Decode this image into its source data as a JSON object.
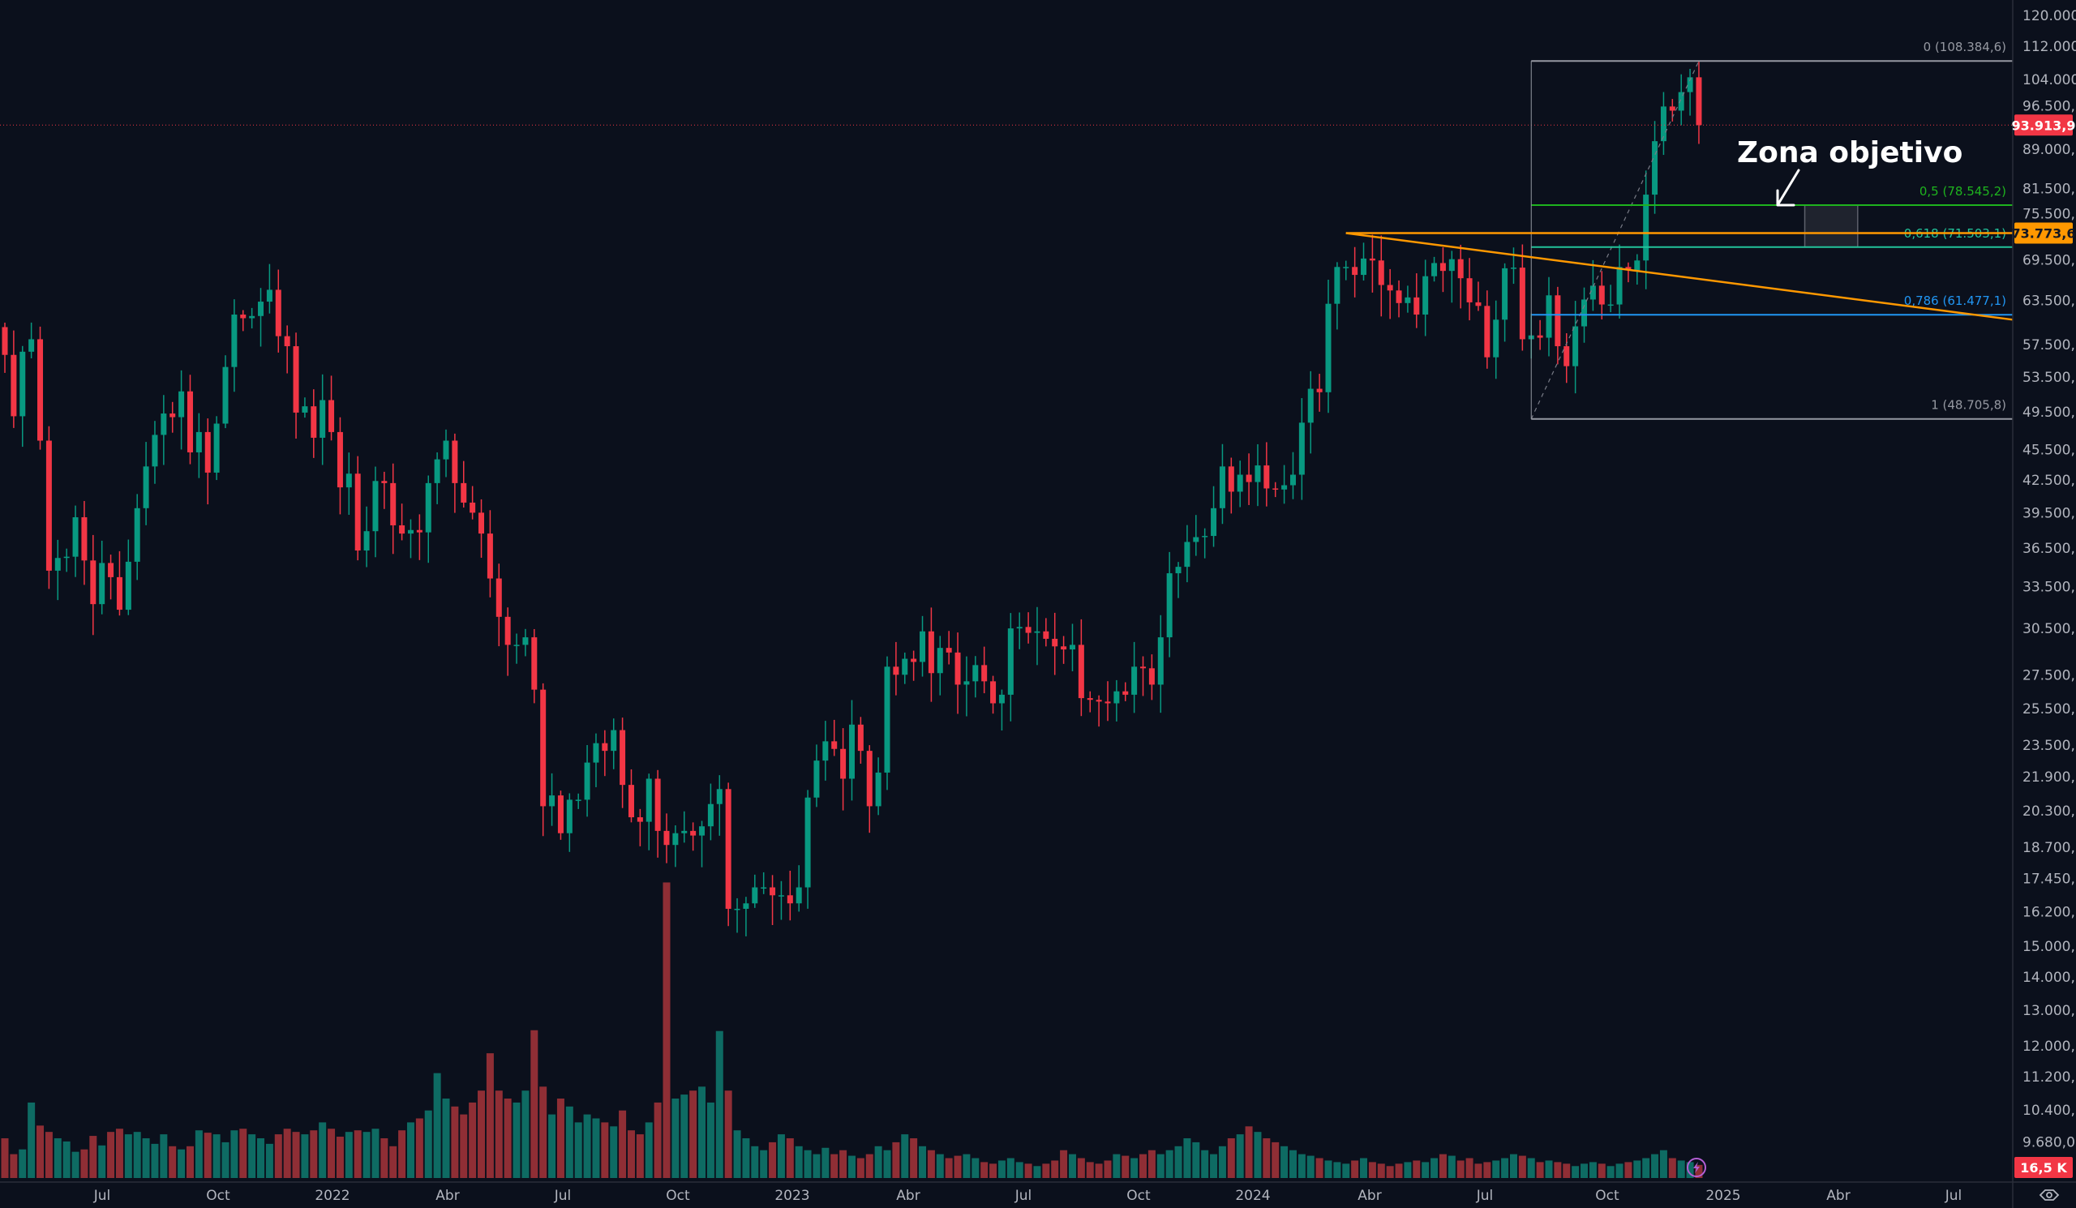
{
  "chart_data": {
    "type": "candlestick",
    "title": "",
    "scale": "log",
    "ylim": [
      9000,
      125000
    ],
    "colors": {
      "up": "#089981",
      "down": "#f23645",
      "vol_up": "#0e6b63",
      "vol_down": "#8f2e35",
      "background": "#0b101c"
    },
    "first_open": 59800,
    "weekly_close": [
      56200,
      49000,
      56600,
      58200,
      46400,
      34700,
      35700,
      35800,
      39100,
      35500,
      32200,
      35300,
      34200,
      31800,
      35400,
      39900,
      43800,
      47000,
      49300,
      48900,
      51800,
      45200,
      47300,
      43200,
      48200,
      54700,
      61500,
      61000,
      61300,
      63300,
      65000,
      58600,
      57300,
      49400,
      50100,
      46700,
      50800,
      47300,
      41800,
      43100,
      36300,
      37900,
      42400,
      42200,
      38400,
      37700,
      38000,
      37800,
      42200,
      44500,
      46400,
      42200,
      40400,
      39500,
      37700,
      34100,
      31300,
      29400,
      29400,
      29900,
      26600,
      20500,
      21000,
      19300,
      20800,
      20800,
      22600,
      23600,
      23200,
      24300,
      21500,
      20000,
      19800,
      21800,
      19400,
      18800,
      19300,
      19400,
      19200,
      19600,
      20600,
      21300,
      16300,
      16300,
      16500,
      17100,
      17100,
      16800,
      16800,
      16500,
      17100,
      20900,
      22700,
      23700,
      23300,
      21800,
      24600,
      23200,
      20500,
      22100,
      28000,
      27500,
      28500,
      28300,
      30300,
      27600,
      29200,
      28900,
      26900,
      27100,
      28100,
      27100,
      25800,
      26300,
      30500,
      30600,
      30200,
      30300,
      29800,
      29300,
      29100,
      29400,
      26100,
      26000,
      25900,
      25800,
      26500,
      26300,
      28000,
      27900,
      26900,
      29900,
      34500,
      35000,
      37000,
      37400,
      37500,
      39900,
      43800,
      41400,
      43000,
      42300,
      43900,
      41700,
      41600,
      42000,
      43000,
      48300,
      52100,
      51700,
      63000,
      68400,
      68400,
      67200,
      69700,
      69400,
      65700,
      64900,
      63100,
      63900,
      61500,
      67000,
      69000,
      67800,
      69600,
      66700,
      63200,
      62700,
      55900,
      60800,
      68200,
      68300,
      58200,
      58700,
      58400,
      64200,
      57300,
      54800,
      59900,
      63600,
      65600,
      62900,
      62900,
      68400,
      67900,
      69400,
      80400,
      90600,
      97900,
      97000,
      101100,
      104500,
      93913.9
    ],
    "volume_k": [
      50,
      30,
      36,
      95,
      66,
      58,
      50,
      46,
      33,
      36,
      53,
      41,
      58,
      62,
      55,
      58,
      50,
      43,
      55,
      40,
      36,
      40,
      60,
      57,
      55,
      45,
      60,
      62,
      55,
      50,
      43,
      55,
      62,
      58,
      55,
      60,
      70,
      62,
      52,
      58,
      60,
      58,
      62,
      50,
      40,
      60,
      70,
      75,
      85,
      132,
      100,
      90,
      80,
      95,
      110,
      157,
      110,
      100,
      95,
      110,
      186,
      115,
      80,
      100,
      90,
      70,
      80,
      75,
      70,
      65,
      85,
      60,
      55,
      70,
      95,
      372,
      100,
      105,
      110,
      115,
      95,
      185,
      110,
      60,
      50,
      40,
      35,
      45,
      55,
      50,
      40,
      35,
      30,
      38,
      30,
      35,
      28,
      25,
      30,
      40,
      35,
      45,
      55,
      50,
      40,
      35,
      30,
      25,
      28,
      30,
      25,
      20,
      18,
      22,
      25,
      20,
      18,
      15,
      18,
      22,
      35,
      30,
      25,
      20,
      18,
      22,
      30,
      28,
      25,
      30,
      35,
      30,
      35,
      40,
      50,
      45,
      35,
      30,
      40,
      50,
      55,
      65,
      58,
      50,
      45,
      40,
      35,
      30,
      28,
      25,
      22,
      20,
      18,
      22,
      25,
      20,
      18,
      15,
      18,
      20,
      22,
      20,
      25,
      30,
      28,
      22,
      25,
      18,
      20,
      22,
      25,
      30,
      28,
      25,
      20,
      22,
      20,
      18,
      15,
      18,
      20,
      18,
      15,
      18,
      20,
      22,
      25,
      30,
      35,
      25,
      22,
      20,
      16.5
    ],
    "x_tick_labels": [
      "Jul",
      "Oct",
      "2022",
      "Abr",
      "Jul",
      "Oct",
      "2023",
      "Abr",
      "Jul",
      "Oct",
      "2024",
      "Abr",
      "Jul",
      "Oct",
      "2025",
      "Abr",
      "Jul"
    ],
    "y_tick_labels": [
      {
        "value": 120000,
        "label": "120.000,0"
      },
      {
        "value": 112000,
        "label": "112.000,0"
      },
      {
        "value": 104000,
        "label": "104.000,0"
      },
      {
        "value": 96500,
        "label": "96.500,0"
      },
      {
        "value": 89000,
        "label": "89.000,0"
      },
      {
        "value": 81500,
        "label": "81.500,0"
      },
      {
        "value": 75500,
        "label": "75.500,0"
      },
      {
        "value": 69500,
        "label": "69.500,0"
      },
      {
        "value": 63500,
        "label": "63.500,0"
      },
      {
        "value": 57500,
        "label": "57.500,0"
      },
      {
        "value": 53500,
        "label": "53.500,0"
      },
      {
        "value": 49500,
        "label": "49.500,0"
      },
      {
        "value": 45500,
        "label": "45.500,0"
      },
      {
        "value": 42500,
        "label": "42.500,0"
      },
      {
        "value": 39500,
        "label": "39.500,0"
      },
      {
        "value": 36500,
        "label": "36.500,0"
      },
      {
        "value": 33500,
        "label": "33.500,0"
      },
      {
        "value": 30500,
        "label": "30.500,0"
      },
      {
        "value": 27500,
        "label": "27.500,0"
      },
      {
        "value": 25500,
        "label": "25.500,0"
      },
      {
        "value": 23500,
        "label": "23.500,0"
      },
      {
        "value": 21900,
        "label": "21.900,0"
      },
      {
        "value": 20300,
        "label": "20.300,0"
      },
      {
        "value": 18700,
        "label": "18.700,0"
      },
      {
        "value": 17450,
        "label": "17.450,0"
      },
      {
        "value": 16200,
        "label": "16.200,0"
      },
      {
        "value": 15000,
        "label": "15.000,0"
      },
      {
        "value": 14000,
        "label": "14.000,0"
      },
      {
        "value": 13000,
        "label": "13.000,0"
      },
      {
        "value": 12000,
        "label": "12.000,0"
      },
      {
        "value": 11200,
        "label": "11.200,0"
      },
      {
        "value": 10400,
        "label": "10.400,0"
      },
      {
        "value": 9680,
        "label": "9.680,0"
      }
    ],
    "last_price": {
      "value": 93913.9,
      "label": "93.913,9",
      "color": "#f23645"
    },
    "horizontal_level": {
      "value": 73773.6,
      "label": "73.773,6",
      "color": "#ff9800"
    },
    "volume_label": {
      "value": 16.5,
      "label": "16,5 K",
      "color": "#f23645"
    },
    "fibonacci": {
      "from_week": 173,
      "to_week": 192,
      "levels": [
        {
          "ratio": 0,
          "price": 108384.6,
          "label": "0 (108.384,6)",
          "color": "#9598a1"
        },
        {
          "ratio": 0.5,
          "price": 78545.2,
          "label": "0,5 (78.545,2)",
          "color": "#1eb31e"
        },
        {
          "ratio": 0.618,
          "price": 71503.1,
          "label": "0,618 (71.503,1)",
          "color": "#22c39a"
        },
        {
          "ratio": 0.786,
          "price": 61477.1,
          "label": "0,786 (61.477,1)",
          "color": "#2196f3"
        },
        {
          "ratio": 1,
          "price": 48705.8,
          "label": "1 (48.705,8)",
          "color": "#9598a1"
        }
      ]
    },
    "trendline": {
      "from_week": 152,
      "from_price": 73773.6,
      "to_price": 60800,
      "color": "#ff9800"
    },
    "target_zone": {
      "price_top": 78545.2,
      "price_bottom": 71503.1,
      "from_week": 204,
      "to_week": 210
    },
    "annotation": "Zona objetivo"
  }
}
